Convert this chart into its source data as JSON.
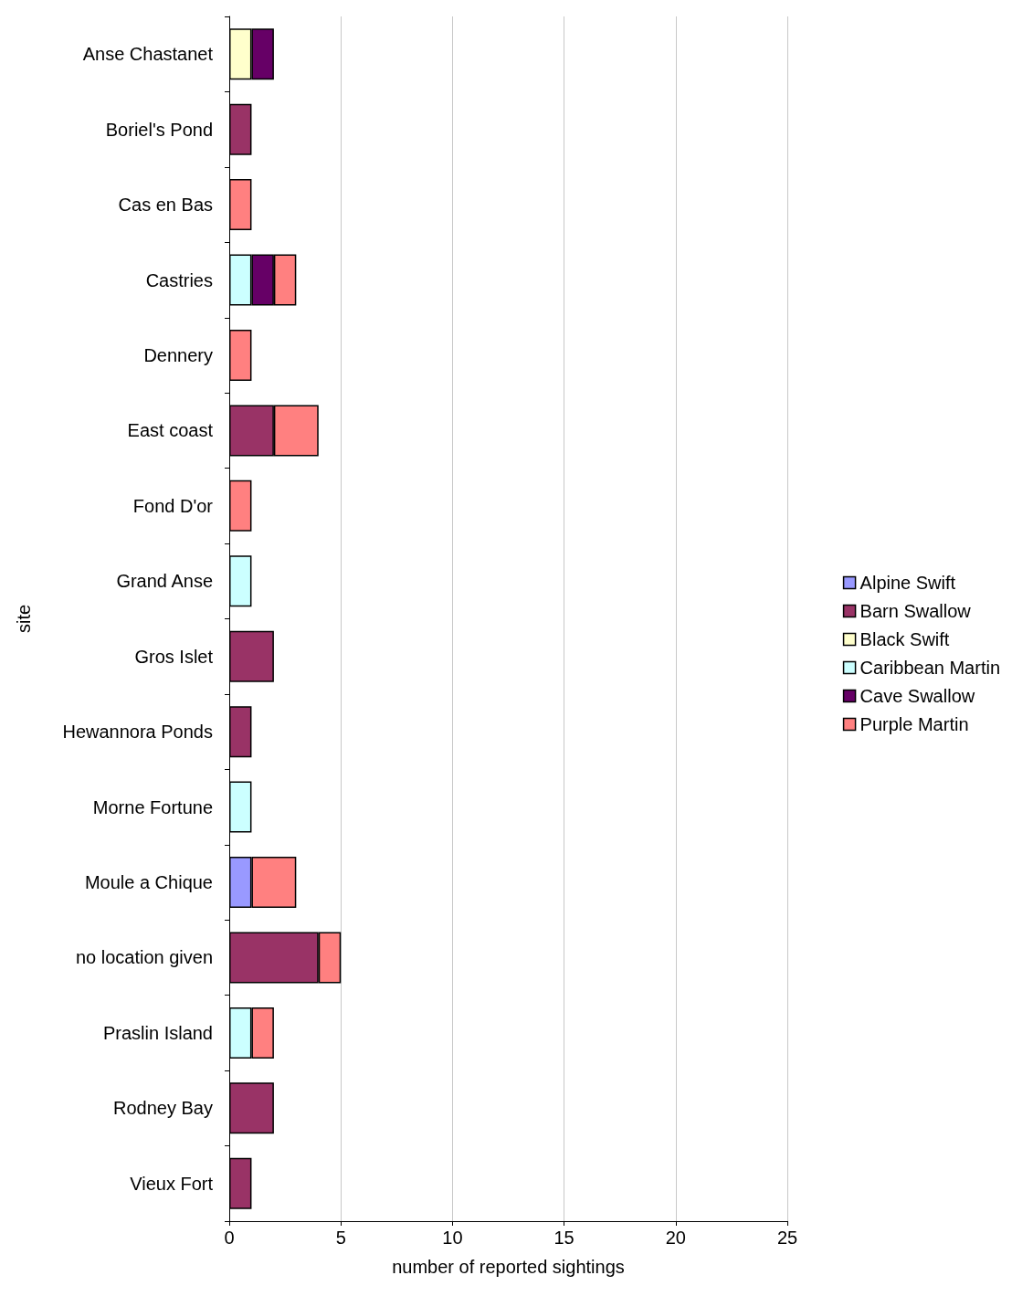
{
  "chart_data": {
    "type": "bar",
    "orientation": "horizontal",
    "stacked": true,
    "xlabel": "number of reported sightings",
    "ylabel": "site",
    "categories": [
      "Anse Chastanet",
      "Boriel's Pond",
      "Cas en Bas",
      "Castries",
      "Dennery",
      "East coast",
      "Fond D'or",
      "Grand Anse",
      "Gros Islet",
      "Hewannora Ponds",
      "Morne Fortune",
      "Moule a Chique",
      "no location given",
      "Praslin Island",
      "Rodney Bay",
      "Vieux Fort"
    ],
    "series": [
      {
        "name": "Alpine Swift",
        "color": "#9999ff",
        "values": [
          null,
          null,
          null,
          null,
          null,
          null,
          null,
          null,
          null,
          null,
          null,
          1,
          null,
          null,
          null,
          null
        ]
      },
      {
        "name": "Barn Swallow",
        "color": "#993366",
        "values": [
          null,
          1,
          null,
          null,
          null,
          2,
          null,
          null,
          2,
          1,
          null,
          null,
          4,
          null,
          2,
          1
        ]
      },
      {
        "name": "Black Swift",
        "color": "#ffffcc",
        "values": [
          1,
          null,
          null,
          null,
          null,
          null,
          null,
          null,
          null,
          null,
          null,
          null,
          null,
          null,
          null,
          null
        ]
      },
      {
        "name": "Caribbean Martin",
        "color": "#ccffff",
        "values": [
          null,
          null,
          null,
          1,
          null,
          null,
          null,
          1,
          null,
          null,
          1,
          null,
          null,
          1,
          null,
          null
        ]
      },
      {
        "name": "Cave Swallow",
        "color": "#660066",
        "values": [
          1,
          null,
          null,
          1,
          null,
          null,
          null,
          null,
          null,
          null,
          null,
          null,
          null,
          null,
          null,
          null
        ]
      },
      {
        "name": "Purple Martin",
        "color": "#ff8080",
        "values": [
          null,
          null,
          1,
          1,
          1,
          2,
          1,
          null,
          null,
          null,
          null,
          2,
          1,
          1,
          null,
          null
        ]
      }
    ],
    "xlim": [
      0,
      25
    ],
    "xticks": [
      0,
      5,
      10,
      15,
      20,
      25
    ],
    "grid": "x",
    "legend": "right"
  }
}
